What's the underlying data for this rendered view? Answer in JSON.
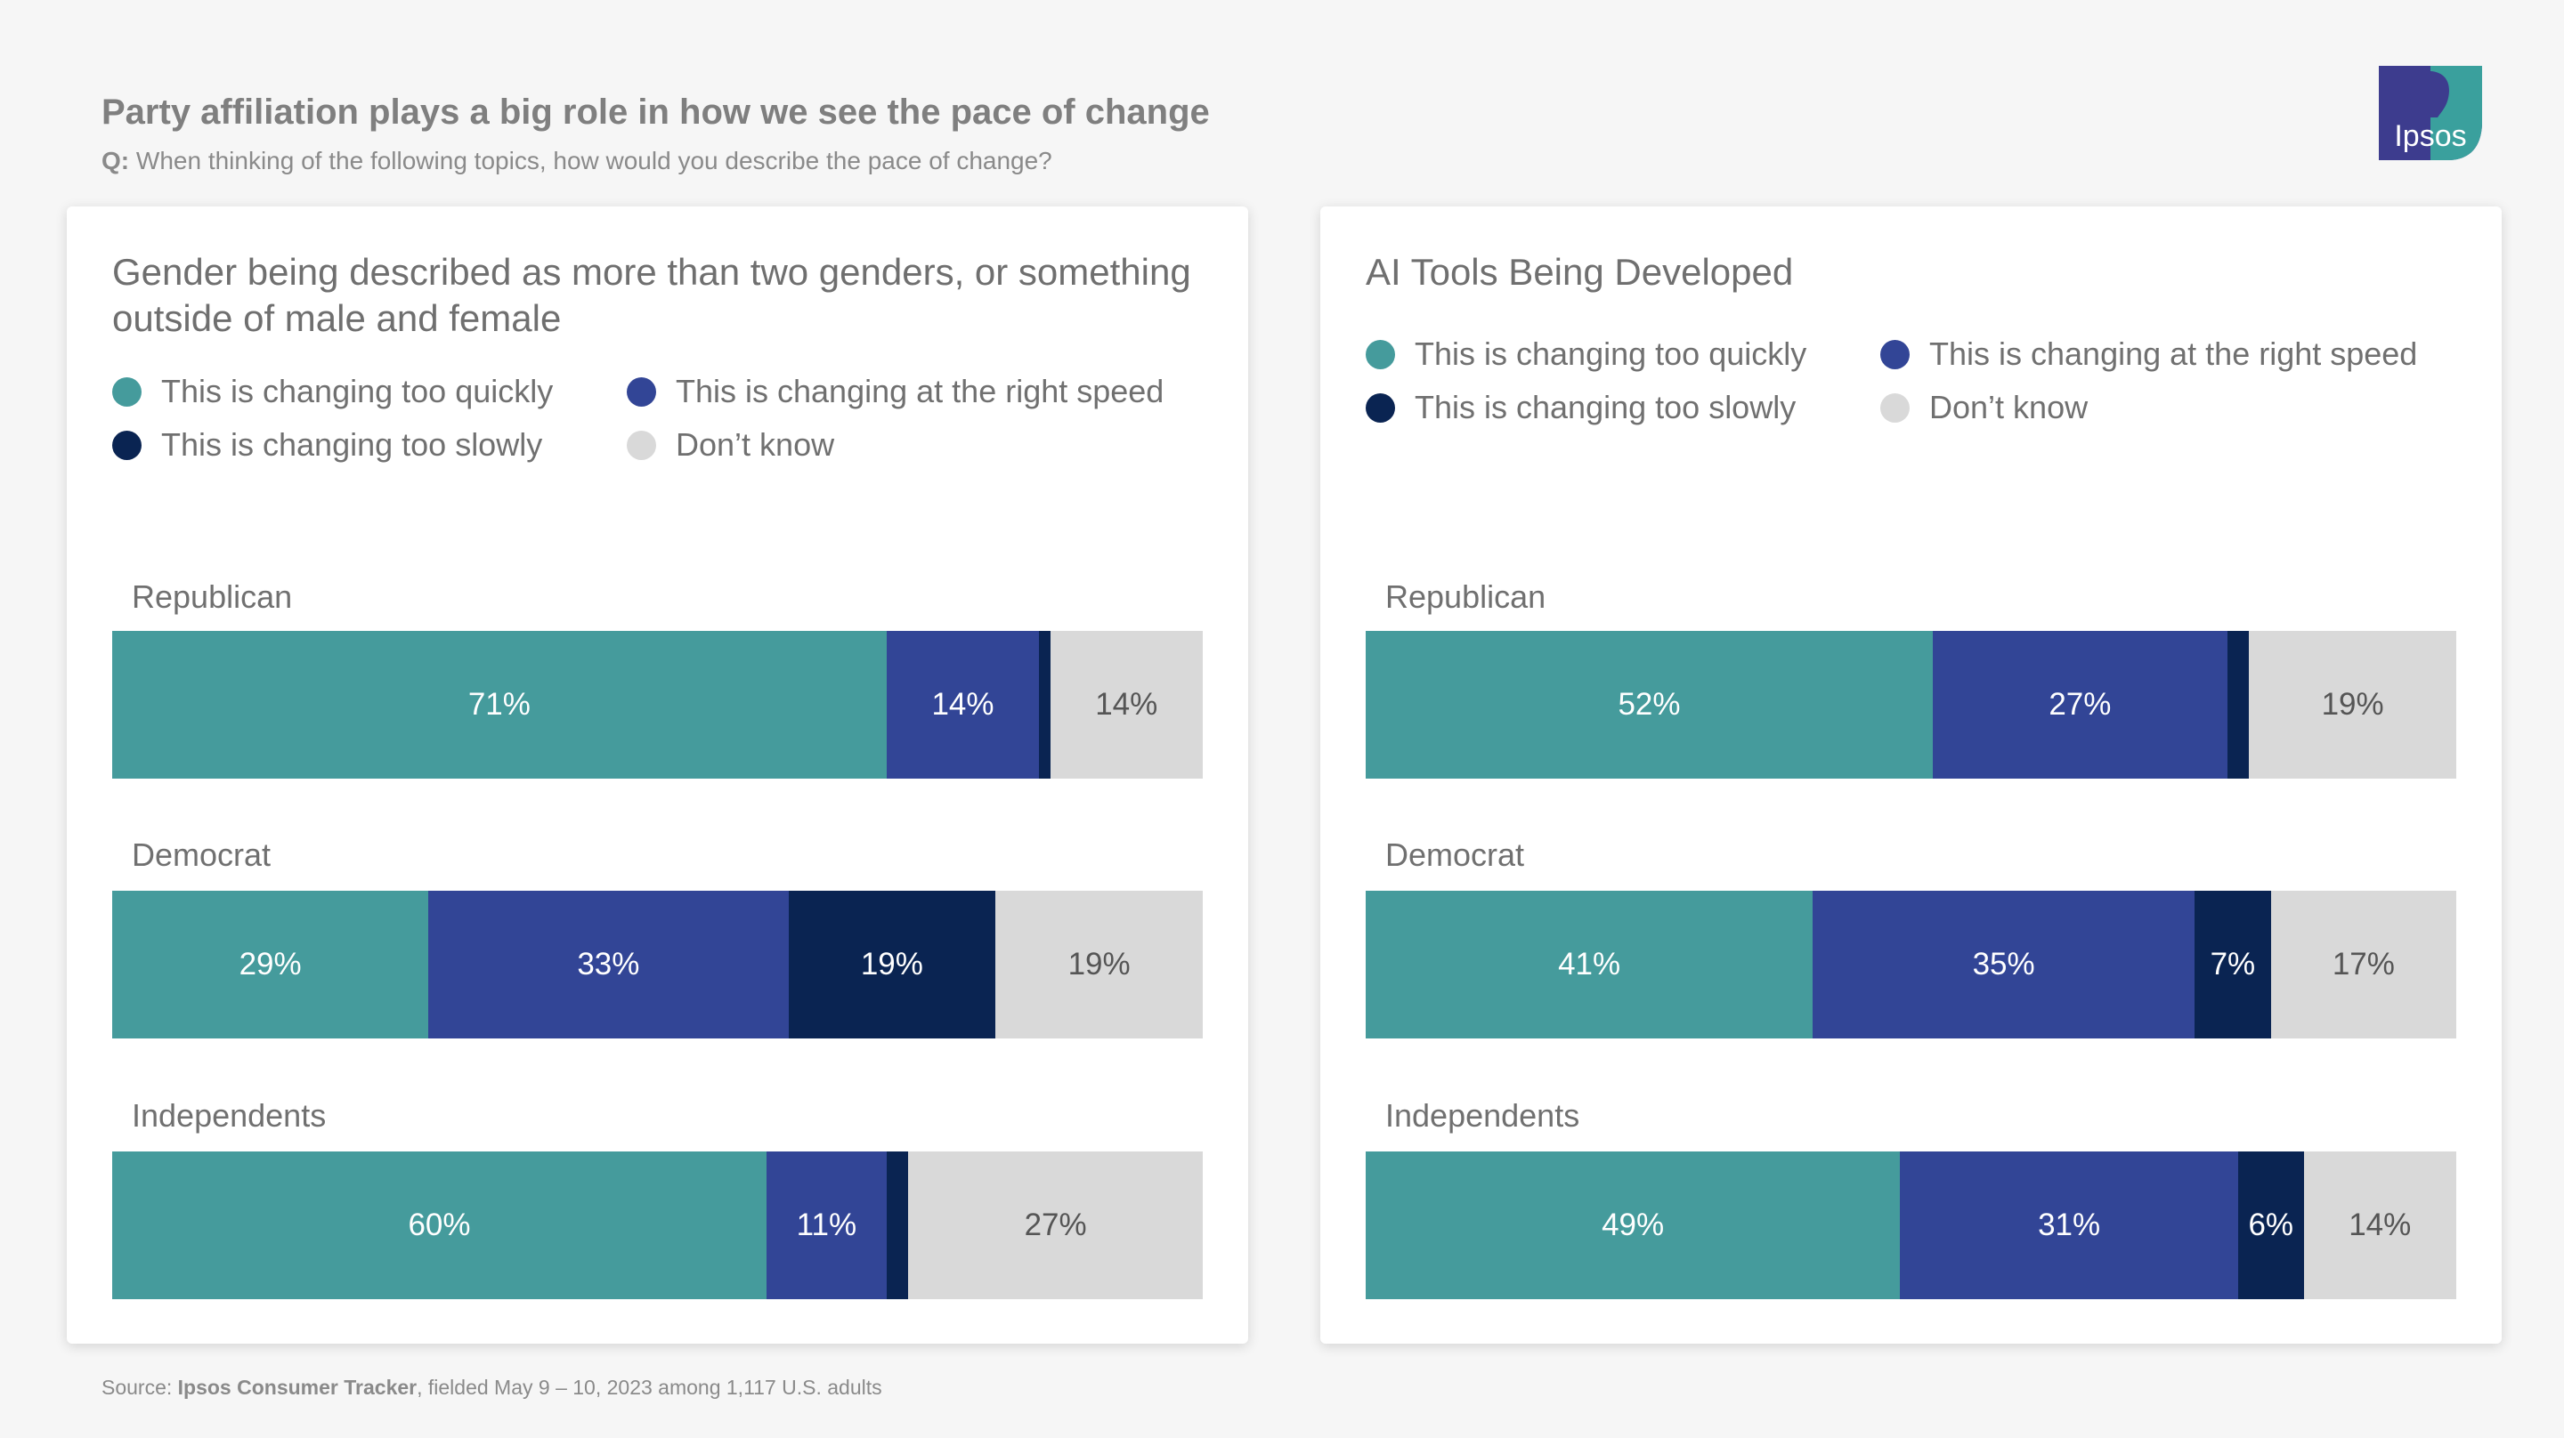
{
  "header": {
    "title": "Party affiliation plays a big role in how we see the pace of change",
    "question_prefix": "Q:",
    "question": "When thinking of the following topics, how would you describe the pace of change?",
    "logo_text": "Ipsos"
  },
  "colors": {
    "too_quickly": "#459b9c",
    "right_speed": "#324596",
    "too_slowly": "#0a2452",
    "dont_know": "#d9d9d9",
    "logo_bg": "#3d3c8e",
    "logo_accent": "#3aa09d"
  },
  "source": {
    "prefix": "Source:",
    "name": "Ipsos Consumer Tracker",
    "rest": ", fielded May 9 – 10, 2023 among 1,117 U.S. adults"
  },
  "chart_data": [
    {
      "type": "bar",
      "orientation": "horizontal",
      "stacked": true,
      "title": "Gender being described as more than two genders, or something outside of male and female",
      "legend": [
        "This is changing too quickly",
        "This is changing at the right speed",
        "This is changing too slowly",
        "Don’t know"
      ],
      "legend_placement": "top",
      "categories": [
        "Republican",
        "Democrat",
        "Independents"
      ],
      "series": [
        {
          "name": "This is changing too quickly",
          "values": [
            71,
            29,
            60
          ],
          "labels": [
            "71%",
            "29%",
            "60%"
          ]
        },
        {
          "name": "This is changing at the right speed",
          "values": [
            14,
            33,
            11
          ],
          "labels": [
            "14%",
            "33%",
            "11%"
          ]
        },
        {
          "name": "This is changing too slowly",
          "values": [
            1,
            19,
            2
          ],
          "labels": [
            "",
            "19%",
            ""
          ]
        },
        {
          "name": "Don’t know",
          "values": [
            14,
            19,
            27
          ],
          "labels": [
            "14%",
            "19%",
            "27%"
          ]
        }
      ]
    },
    {
      "type": "bar",
      "orientation": "horizontal",
      "stacked": true,
      "title": "AI Tools Being Developed",
      "legend": [
        "This is changing too quickly",
        "This is changing at the right speed",
        "This is changing too slowly",
        "Don’t know"
      ],
      "legend_placement": "top",
      "categories": [
        "Republican",
        "Democrat",
        "Independents"
      ],
      "series": [
        {
          "name": "This is changing too quickly",
          "values": [
            52,
            41,
            49
          ],
          "labels": [
            "52%",
            "41%",
            "49%"
          ]
        },
        {
          "name": "This is changing at the right speed",
          "values": [
            27,
            35,
            31
          ],
          "labels": [
            "27%",
            "35%",
            "31%"
          ]
        },
        {
          "name": "This is changing too slowly",
          "values": [
            2,
            7,
            6
          ],
          "labels": [
            "",
            "7%",
            "6%"
          ]
        },
        {
          "name": "Don’t know",
          "values": [
            19,
            17,
            14
          ],
          "labels": [
            "19%",
            "17%",
            "14%"
          ]
        }
      ]
    }
  ]
}
